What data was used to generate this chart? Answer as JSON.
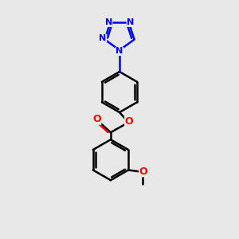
{
  "bg_color": "#e8e8e8",
  "bond_color": "#000000",
  "nitrogen_color": "#0000ff",
  "oxygen_color": "#ff0000",
  "line_width": 1.8,
  "figsize": [
    3.0,
    3.0
  ],
  "dpi": 100,
  "xlim": [
    0,
    10
  ],
  "ylim": [
    0,
    10
  ]
}
